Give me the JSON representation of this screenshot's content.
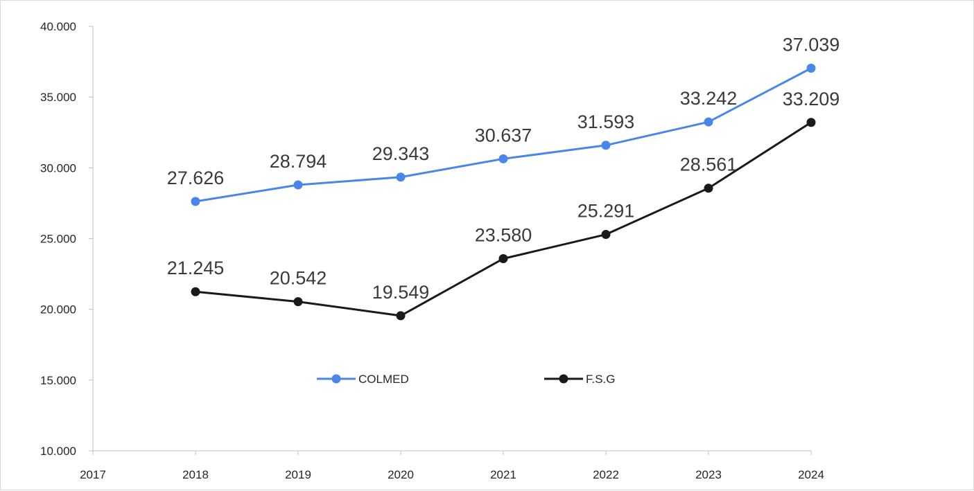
{
  "chart_data": {
    "type": "line",
    "title": "",
    "xlabel": "",
    "ylabel": "",
    "x_ticks": [
      "2017",
      "2018",
      "2019",
      "2020",
      "2021",
      "2022",
      "2023",
      "2024"
    ],
    "categories": [
      "2018",
      "2019",
      "2020",
      "2021",
      "2022",
      "2023",
      "2024"
    ],
    "ylim": [
      10000,
      40000
    ],
    "y_ticks": [
      10000,
      15000,
      20000,
      25000,
      30000,
      35000,
      40000
    ],
    "y_tick_labels": [
      "10.000",
      "15.000",
      "20.000",
      "25.000",
      "30.000",
      "35.000",
      "40.000"
    ],
    "grid": false,
    "legend_position": "center",
    "series": [
      {
        "name": "COLMED",
        "color": "#4a86e8",
        "values": [
          27626,
          28794,
          29343,
          30637,
          31593,
          33242,
          37039
        ],
        "labels": [
          "27.626",
          "28.794",
          "29.343",
          "30.637",
          "31.593",
          "33.242",
          "37.039"
        ]
      },
      {
        "name": "F.S.G",
        "color": "#1a1a1a",
        "values": [
          21245,
          20542,
          19549,
          23580,
          25291,
          28561,
          33209
        ],
        "labels": [
          "21.245",
          "20.542",
          "19.549",
          "23.580",
          "25.291",
          "28.561",
          "33.209"
        ]
      }
    ]
  }
}
